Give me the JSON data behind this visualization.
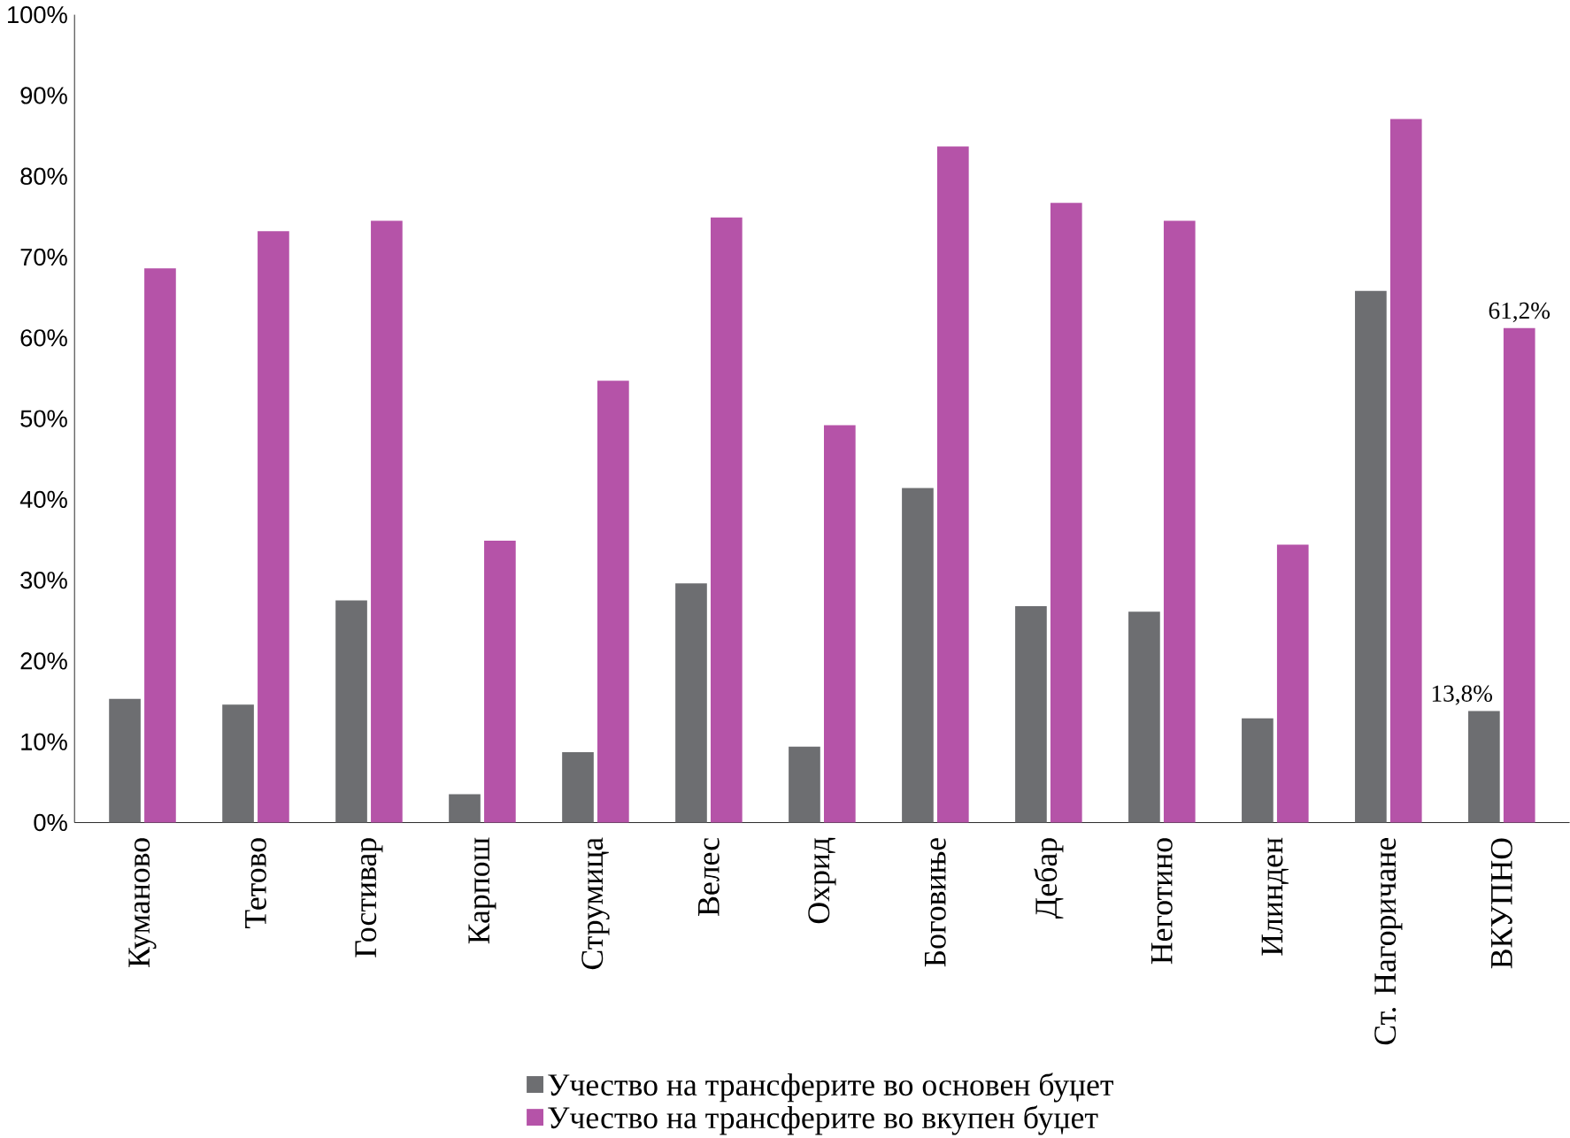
{
  "chart_data": {
    "type": "bar",
    "categories": [
      "Куманово",
      "Тетово",
      "Гостивар",
      "Карпош",
      "Струмица",
      "Велес",
      "Охрид",
      "Боговиње",
      "Дебар",
      "Неготино",
      "Илинден",
      "Ст. Нагоричане",
      "ВКУПНО"
    ],
    "series": [
      {
        "name": "Учество на трансферите во основен буџет",
        "color": "#6d6e71",
        "values": [
          15.3,
          14.6,
          27.5,
          3.5,
          8.7,
          29.6,
          9.4,
          41.4,
          26.8,
          26.1,
          12.9,
          65.8,
          13.8
        ],
        "value_labels": [
          null,
          null,
          null,
          null,
          null,
          null,
          null,
          null,
          null,
          null,
          null,
          null,
          "13,8%"
        ]
      },
      {
        "name": "Учество на трансферите во вкупен буџет",
        "color": "#b553a8",
        "values": [
          68.6,
          73.2,
          74.5,
          34.9,
          54.7,
          74.9,
          49.2,
          83.7,
          76.7,
          74.5,
          34.4,
          87.1,
          61.2
        ],
        "value_labels": [
          null,
          null,
          null,
          null,
          null,
          null,
          null,
          null,
          null,
          null,
          null,
          null,
          "61,2%"
        ]
      }
    ],
    "ylim": [
      0,
      100
    ],
    "yticks": [
      {
        "value": 0,
        "label": "0%"
      },
      {
        "value": 10,
        "label": "10%"
      },
      {
        "value": 20,
        "label": "20%"
      },
      {
        "value": 30,
        "label": "30%"
      },
      {
        "value": 40,
        "label": "40%"
      },
      {
        "value": 50,
        "label": "50%"
      },
      {
        "value": 60,
        "label": "60%"
      },
      {
        "value": 70,
        "label": "70%"
      },
      {
        "value": 80,
        "label": "80%"
      },
      {
        "value": 90,
        "label": "90%"
      },
      {
        "value": 100,
        "label": "100%"
      }
    ],
    "legend": "bottom"
  }
}
